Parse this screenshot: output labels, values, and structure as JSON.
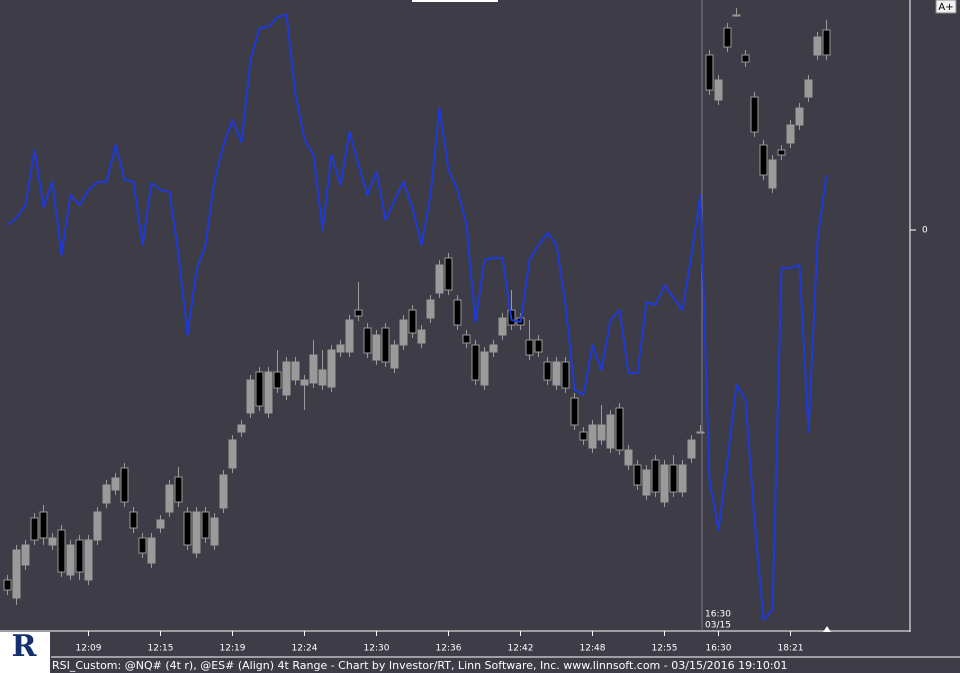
{
  "chart_data": {
    "type": "candlestick",
    "footer": "RSI_Custom: @NQ# (4t r), @ES# (Align) 4t Range - Chart by Investor/RT, Linn Software, Inc. www.linnsoft.com - 03/15/2016 19:10:01",
    "button": "A+",
    "logo": "R",
    "session_time": "16:30",
    "session_date": "03/15",
    "categories": [
      null,
      null,
      null,
      null,
      null,
      null,
      null,
      null,
      null,
      "12:09",
      null,
      null,
      null,
      null,
      null,
      null,
      null,
      "12:15",
      null,
      null,
      null,
      null,
      null,
      null,
      null,
      "12:19",
      null,
      null,
      null,
      null,
      null,
      null,
      null,
      "12:24",
      null,
      null,
      null,
      null,
      null,
      null,
      null,
      "12:30",
      null,
      null,
      null,
      null,
      null,
      null,
      null,
      "12:36",
      null,
      null,
      null,
      null,
      null,
      null,
      null,
      "12:42",
      null,
      null,
      null,
      null,
      null,
      null,
      null,
      "12:48",
      null,
      null,
      null,
      null,
      null,
      null,
      null,
      "12:55",
      null,
      null,
      null,
      null,
      null,
      "16:30",
      null,
      null,
      null,
      null,
      null,
      null,
      null,
      "18:21",
      null,
      null,
      null,
      null
    ],
    "open": [
      -350,
      -368,
      -335,
      -288,
      -282,
      -315,
      -300,
      -345,
      -310,
      -350,
      -310,
      -273,
      -260,
      -238,
      -282,
      -308,
      -333,
      -298,
      -282,
      -247,
      -282,
      -323,
      -282,
      -315,
      -278,
      -238,
      -202,
      -183,
      -142,
      -183,
      -142,
      -165,
      -150,
      -155,
      -153,
      -155,
      -157,
      -122,
      -122,
      -80,
      -98,
      -130,
      -98,
      -138,
      -115,
      -80,
      -113,
      -88,
      -63,
      -28,
      -70,
      -105,
      -115,
      -155,
      -122,
      -105,
      -80,
      -88,
      -110,
      -110,
      -132,
      -155,
      -132,
      -168,
      -202,
      -218,
      -210,
      -218,
      -178,
      -235,
      -235,
      -265,
      -230,
      -272,
      -235,
      -262,
      -228,
      -202,
      175,
      130,
      202,
      215,
      175,
      133,
      85,
      42,
      80,
      87,
      105,
      133,
      175,
      200
    ],
    "high": [
      -345,
      -315,
      -310,
      -283,
      -275,
      -303,
      -295,
      -310,
      -305,
      -305,
      -277,
      -250,
      -243,
      -233,
      -277,
      -303,
      -303,
      -285,
      -250,
      -237,
      -277,
      -277,
      -277,
      -283,
      -240,
      -205,
      -190,
      -145,
      -137,
      -137,
      -120,
      -127,
      -127,
      -145,
      -110,
      -120,
      -115,
      -110,
      -85,
      -52,
      -93,
      -100,
      -93,
      -110,
      -85,
      -75,
      -95,
      -65,
      -30,
      -23,
      -65,
      -100,
      -110,
      -117,
      -110,
      -83,
      -60,
      -83,
      -90,
      -105,
      -127,
      -127,
      -127,
      -163,
      -197,
      -190,
      -175,
      -180,
      -173,
      -215,
      -230,
      -235,
      -225,
      -230,
      -225,
      -230,
      -205,
      -195,
      180,
      155,
      207,
      222,
      180,
      138,
      90,
      75,
      85,
      110,
      127,
      155,
      198,
      210
    ],
    "low": [
      -365,
      -375,
      -340,
      -315,
      -315,
      -320,
      -347,
      -350,
      -350,
      -355,
      -315,
      -278,
      -265,
      -277,
      -303,
      -328,
      -338,
      -303,
      -287,
      -277,
      -320,
      -328,
      -313,
      -320,
      -283,
      -243,
      -207,
      -188,
      -181,
      -188,
      -163,
      -170,
      -155,
      -180,
      -158,
      -160,
      -162,
      -127,
      -127,
      -91,
      -128,
      -135,
      -137,
      -143,
      -120,
      -108,
      -118,
      -93,
      -68,
      -65,
      -100,
      -118,
      -155,
      -160,
      -127,
      -110,
      -100,
      -100,
      -130,
      -127,
      -155,
      -160,
      -163,
      -200,
      -215,
      -223,
      -215,
      -223,
      -225,
      -240,
      -260,
      -270,
      -267,
      -277,
      -267,
      -267,
      -233,
      -202,
      135,
      125,
      178,
      215,
      163,
      93,
      50,
      37,
      70,
      82,
      100,
      128,
      170,
      170
    ],
    "close": [
      -360,
      -320,
      -315,
      -310,
      -308,
      -308,
      -342,
      -315,
      -342,
      -310,
      -282,
      -255,
      -248,
      -272,
      -298,
      -323,
      -308,
      -290,
      -255,
      -272,
      -315,
      -282,
      -308,
      -288,
      -245,
      -210,
      -195,
      -150,
      -176,
      -142,
      -158,
      -132,
      -132,
      -150,
      -125,
      -140,
      -120,
      -115,
      -90,
      -86,
      -123,
      -105,
      -132,
      -115,
      -90,
      -103,
      -100,
      -70,
      -35,
      -60,
      -95,
      -113,
      -150,
      -122,
      -115,
      -88,
      -95,
      -95,
      -125,
      -122,
      -150,
      -132,
      -158,
      -195,
      -210,
      -195,
      -195,
      -185,
      -220,
      -220,
      -255,
      -240,
      -262,
      -235,
      -262,
      -235,
      -210,
      -202,
      140,
      150,
      183,
      215,
      168,
      98,
      55,
      70,
      75,
      105,
      122,
      150,
      193,
      175
    ],
    "up_color": "#9a9a9a",
    "down_color": "#000000",
    "line_values": [
      5,
      12,
      25,
      80,
      23,
      48,
      -25,
      35,
      25,
      40,
      48,
      48,
      85,
      50,
      48,
      -15,
      47,
      40,
      38,
      -25,
      -105,
      -40,
      -15,
      50,
      85,
      110,
      88,
      170,
      202,
      203,
      213,
      215,
      135,
      90,
      75,
      0,
      75,
      45,
      98,
      65,
      35,
      58,
      10,
      30,
      48,
      22,
      -15,
      35,
      122,
      60,
      40,
      5,
      -92,
      -30,
      -28,
      -28,
      -90,
      -92,
      -30,
      -15,
      -3,
      -15,
      -75,
      -160,
      -165,
      -115,
      -140,
      -90,
      -80,
      -143,
      -143,
      -72,
      -75,
      -55,
      -68,
      -80,
      -25,
      35,
      -250,
      -300,
      -230,
      -155,
      -170,
      -290,
      -390,
      -380,
      -38,
      -38,
      -35,
      -202,
      -10,
      55
    ],
    "line_color": "#1e3ad8",
    "ylim": [
      -400,
      230
    ],
    "yticks": [
      0
    ]
  }
}
